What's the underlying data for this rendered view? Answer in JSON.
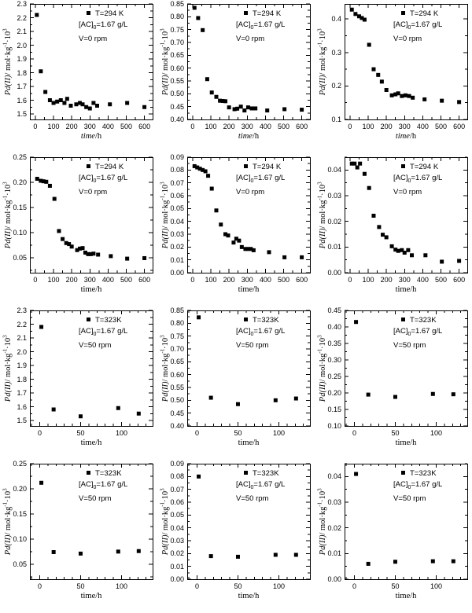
{
  "figure": {
    "background": "#ffffff",
    "marker_color": "#000000",
    "axis_color": "#000000",
    "marker_shape": "filled-square"
  },
  "axis_labels": {
    "y_italic": "Pd(II)",
    "y_rest": "/ mol·kg",
    "y_sup1": "-1",
    "y_mid": "·10",
    "y_sup2": "3",
    "x_italic": "time",
    "x_rest": "/h",
    "x_plain": "time/h"
  },
  "chart_data": [
    {
      "type": "scatter",
      "x": [
        8,
        30,
        55,
        80,
        100,
        120,
        140,
        160,
        175,
        195,
        225,
        245,
        260,
        280,
        300,
        320,
        340,
        410,
        505,
        600
      ],
      "y": [
        2.22,
        1.81,
        1.66,
        1.6,
        1.58,
        1.59,
        1.6,
        1.58,
        1.61,
        1.56,
        1.57,
        1.58,
        1.57,
        1.55,
        1.54,
        1.58,
        1.56,
        1.57,
        1.58,
        1.55
      ],
      "xlim": [
        -30,
        645
      ],
      "ylim": [
        1.46,
        2.3
      ],
      "xticks": [
        0,
        100,
        200,
        300,
        400,
        500,
        600
      ],
      "yticks": [
        1.5,
        1.6,
        1.7,
        1.8,
        1.9,
        2.0,
        2.1,
        2.2,
        2.3
      ],
      "xminor": 50,
      "yminor": 0.05,
      "ydecimals": 1,
      "xlabel_italic": true,
      "legend": {
        "temp": "T=294 K",
        "ac_pre": "[AC]",
        "ac_sub": "0",
        "ac_post": "=1.67 g/L",
        "rpm": "V=0 rpm"
      }
    },
    {
      "type": "scatter",
      "x": [
        10,
        30,
        55,
        80,
        105,
        130,
        150,
        165,
        180,
        200,
        230,
        245,
        265,
        285,
        305,
        325,
        345,
        410,
        505,
        600
      ],
      "y": [
        0.835,
        0.795,
        0.748,
        0.557,
        0.505,
        0.488,
        0.473,
        0.472,
        0.471,
        0.447,
        0.44,
        0.442,
        0.45,
        0.435,
        0.447,
        0.443,
        0.443,
        0.435,
        0.44,
        0.438
      ],
      "xlim": [
        -30,
        645
      ],
      "ylim": [
        0.4,
        0.85
      ],
      "xticks": [
        0,
        100,
        200,
        300,
        400,
        500,
        600
      ],
      "yticks": [
        0.4,
        0.45,
        0.5,
        0.55,
        0.6,
        0.65,
        0.7,
        0.75,
        0.8,
        0.85
      ],
      "xminor": 50,
      "yminor": 0.025,
      "ydecimals": 2,
      "xlabel_italic": true,
      "legend": {
        "temp": "T=294 K",
        "ac_pre": "[AC]",
        "ac_sub": "0",
        "ac_post": "=1.67 g/L",
        "rpm": "V=0 rpm"
      }
    },
    {
      "type": "scatter",
      "x": [
        10,
        30,
        50,
        65,
        80,
        105,
        130,
        155,
        175,
        200,
        230,
        250,
        265,
        285,
        305,
        325,
        345,
        410,
        505,
        600
      ],
      "y": [
        0.428,
        0.415,
        0.408,
        0.403,
        0.398,
        0.323,
        0.25,
        0.233,
        0.213,
        0.188,
        0.172,
        0.175,
        0.178,
        0.17,
        0.172,
        0.17,
        0.165,
        0.16,
        0.156,
        0.152
      ],
      "xlim": [
        -30,
        645
      ],
      "ylim": [
        0.1,
        0.445
      ],
      "xticks": [
        0,
        100,
        200,
        300,
        400,
        500,
        600
      ],
      "yticks": [
        0.1,
        0.2,
        0.3,
        0.4
      ],
      "xminor": 50,
      "yminor": 0.05,
      "ydecimals": 1,
      "xlabel_italic": true,
      "legend": {
        "temp": "T=294 K",
        "ac_pre": "[AC]",
        "ac_sub": "0",
        "ac_post": "=1.67 g/L",
        "rpm": "V=0 rpm"
      }
    },
    {
      "type": "scatter",
      "x": [
        10,
        30,
        45,
        60,
        80,
        105,
        130,
        150,
        170,
        185,
        200,
        230,
        245,
        260,
        275,
        290,
        305,
        320,
        345,
        415,
        505,
        600
      ],
      "y": [
        0.207,
        0.203,
        0.202,
        0.201,
        0.193,
        0.167,
        0.103,
        0.087,
        0.079,
        0.077,
        0.072,
        0.065,
        0.068,
        0.069,
        0.06,
        0.057,
        0.057,
        0.058,
        0.056,
        0.053,
        0.048,
        0.049
      ],
      "xlim": [
        -30,
        645
      ],
      "ylim": [
        0.02,
        0.25
      ],
      "xticks": [
        0,
        100,
        200,
        300,
        400,
        500,
        600
      ],
      "yticks": [
        0.05,
        0.1,
        0.15,
        0.2,
        0.25
      ],
      "xminor": 50,
      "yminor": 0.025,
      "ydecimals": 2,
      "xlabel_italic": false,
      "legend": {
        "temp": "T=294 K",
        "ac_pre": "[AC]",
        "ac_sub": "0",
        "ac_post": "=1.67 g/L",
        "rpm": "V=0 rpm"
      }
    },
    {
      "type": "scatter",
      "x": [
        10,
        25,
        40,
        55,
        70,
        85,
        105,
        130,
        155,
        180,
        195,
        225,
        240,
        255,
        270,
        290,
        305,
        320,
        335,
        420,
        505,
        600
      ],
      "y": [
        0.083,
        0.082,
        0.081,
        0.08,
        0.079,
        0.0755,
        0.0655,
        0.0485,
        0.0375,
        0.03,
        0.029,
        0.0235,
        0.0265,
        0.025,
        0.02,
        0.0185,
        0.0185,
        0.0185,
        0.0175,
        0.016,
        0.012,
        0.012
      ],
      "xlim": [
        -30,
        645
      ],
      "ylim": [
        0.0,
        0.09
      ],
      "xticks": [
        0,
        100,
        200,
        300,
        400,
        500,
        600
      ],
      "yticks": [
        0.0,
        0.01,
        0.02,
        0.03,
        0.04,
        0.05,
        0.06,
        0.07,
        0.08,
        0.09
      ],
      "xminor": 50,
      "yminor": 0.005,
      "ydecimals": 2,
      "xlabel_italic": false,
      "legend": {
        "temp": "T=294 K",
        "ac_pre": "[AC]",
        "ac_sub": "0",
        "ac_post": "=1.67 g/L",
        "rpm": "V=0 rpm"
      }
    },
    {
      "type": "scatter",
      "x": [
        10,
        25,
        40,
        55,
        80,
        105,
        130,
        160,
        180,
        200,
        230,
        250,
        265,
        285,
        300,
        320,
        340,
        415,
        505,
        600
      ],
      "y": [
        0.0425,
        0.0425,
        0.041,
        0.0425,
        0.0385,
        0.033,
        0.0222,
        0.0178,
        0.0148,
        0.0138,
        0.0103,
        0.009,
        0.0085,
        0.0088,
        0.0078,
        0.0088,
        0.0068,
        0.0068,
        0.0043,
        0.0046
      ],
      "xlim": [
        -30,
        645
      ],
      "ylim": [
        0.0,
        0.045
      ],
      "xticks": [
        0,
        100,
        200,
        300,
        400,
        500,
        600
      ],
      "yticks": [
        0.0,
        0.01,
        0.02,
        0.03,
        0.04
      ],
      "xminor": 50,
      "yminor": 0.005,
      "ydecimals": 2,
      "xlabel_italic": false,
      "legend": {
        "temp": "T=294 K",
        "ac_pre": "[AC]",
        "ac_sub": "0",
        "ac_post": "=1.67 g/L",
        "rpm": "V=0 rpm"
      }
    },
    {
      "type": "scatter",
      "x": [
        2,
        17,
        50,
        96,
        121
      ],
      "y": [
        2.18,
        1.58,
        1.53,
        1.59,
        1.55
      ],
      "xlim": [
        -12,
        138
      ],
      "ylim": [
        1.46,
        2.3
      ],
      "xticks": [
        0,
        50,
        100
      ],
      "yticks": [
        1.5,
        1.6,
        1.7,
        1.8,
        1.9,
        2.0,
        2.1,
        2.2,
        2.3
      ],
      "xminor": 10,
      "yminor": 0.05,
      "ydecimals": 1,
      "xlabel_italic": false,
      "legend": {
        "temp": "T=323K",
        "ac_pre": "[AC]",
        "ac_sub": "0",
        "ac_post": "=1.67 g/L",
        "rpm": "V=50 rpm"
      }
    },
    {
      "type": "scatter",
      "x": [
        2,
        17,
        50,
        96,
        121
      ],
      "y": [
        0.823,
        0.51,
        0.485,
        0.5,
        0.507
      ],
      "xlim": [
        -12,
        138
      ],
      "ylim": [
        0.4,
        0.85
      ],
      "xticks": [
        0,
        50,
        100
      ],
      "yticks": [
        0.4,
        0.45,
        0.5,
        0.55,
        0.6,
        0.65,
        0.7,
        0.75,
        0.8,
        0.85
      ],
      "xminor": 10,
      "yminor": 0.025,
      "ydecimals": 2,
      "xlabel_italic": false,
      "legend": {
        "temp": "T=323K",
        "ac_pre": "[AC]",
        "ac_sub": "0",
        "ac_post": "=1.67 g/L",
        "rpm": "V=50 rpm"
      }
    },
    {
      "type": "scatter",
      "x": [
        2,
        17,
        50,
        96,
        121
      ],
      "y": [
        0.415,
        0.195,
        0.188,
        0.197,
        0.196
      ],
      "xlim": [
        -12,
        138
      ],
      "ylim": [
        0.1,
        0.45
      ],
      "xticks": [
        0,
        50,
        100
      ],
      "yticks": [
        0.1,
        0.15,
        0.2,
        0.25,
        0.3,
        0.35,
        0.4,
        0.45
      ],
      "xminor": 10,
      "yminor": 0.025,
      "ydecimals": 2,
      "xlabel_italic": false,
      "legend": {
        "temp": "T=323K",
        "ac_pre": "[AC]",
        "ac_sub": "0",
        "ac_post": "=1.67 g/L",
        "rpm": "V=50 rpm"
      }
    },
    {
      "type": "scatter",
      "x": [
        2,
        17,
        50,
        96,
        121
      ],
      "y": [
        0.212,
        0.074,
        0.071,
        0.075,
        0.076
      ],
      "xlim": [
        -12,
        138
      ],
      "ylim": [
        0.02,
        0.25
      ],
      "xticks": [
        0,
        50,
        100
      ],
      "yticks": [
        0.05,
        0.1,
        0.15,
        0.2,
        0.25
      ],
      "xminor": 10,
      "yminor": 0.025,
      "ydecimals": 2,
      "xlabel_italic": false,
      "legend": {
        "temp": "T=323K",
        "ac_pre": "[AC]",
        "ac_sub": "0",
        "ac_post": "=1.67 g/L",
        "rpm": "V=50 rpm"
      }
    },
    {
      "type": "scatter",
      "x": [
        2,
        17,
        50,
        96,
        121
      ],
      "y": [
        0.08,
        0.018,
        0.0175,
        0.019,
        0.019
      ],
      "xlim": [
        -12,
        138
      ],
      "ylim": [
        0.0,
        0.09
      ],
      "xticks": [
        0,
        50,
        100
      ],
      "yticks": [
        0.0,
        0.01,
        0.02,
        0.03,
        0.04,
        0.05,
        0.06,
        0.07,
        0.08,
        0.09
      ],
      "xminor": 10,
      "yminor": 0.005,
      "ydecimals": 2,
      "xlabel_italic": false,
      "legend": {
        "temp": "T=323K",
        "ac_pre": "[AC]",
        "ac_sub": "0",
        "ac_post": "=1.67 g/L",
        "rpm": "V=50 rpm"
      }
    },
    {
      "type": "scatter",
      "x": [
        2,
        17,
        50,
        96,
        121
      ],
      "y": [
        0.041,
        0.006,
        0.0068,
        0.007,
        0.007
      ],
      "xlim": [
        -12,
        138
      ],
      "ylim": [
        0.0,
        0.045
      ],
      "xticks": [
        0,
        50,
        100
      ],
      "yticks": [
        0.0,
        0.01,
        0.02,
        0.03,
        0.04
      ],
      "xminor": 10,
      "yminor": 0.005,
      "ydecimals": 2,
      "xlabel_italic": false,
      "legend": {
        "temp": "T=323K",
        "ac_pre": "[AC]",
        "ac_sub": "0",
        "ac_post": "=1.67 g/L",
        "rpm": "V=50 rpm"
      }
    }
  ]
}
